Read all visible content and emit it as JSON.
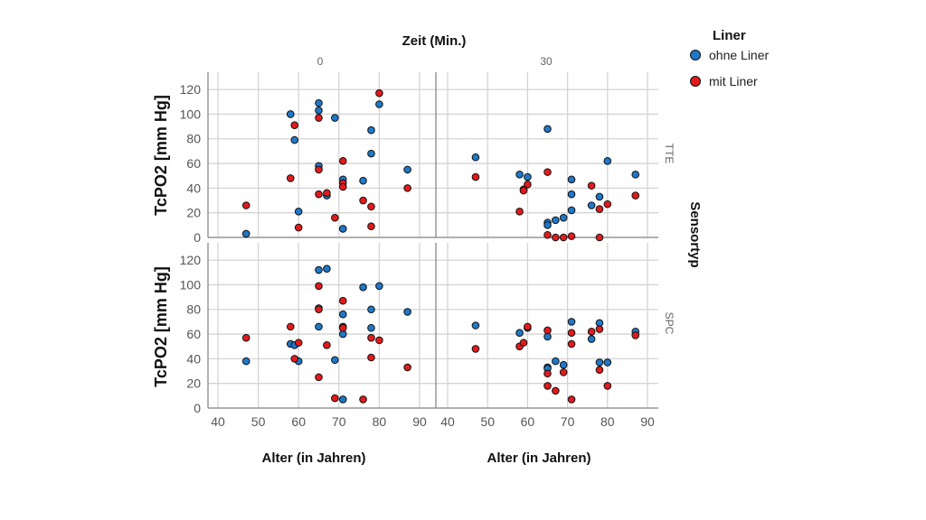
{
  "chart_data": {
    "type": "scatter",
    "title": "Zeit (Min.)",
    "xlabel": "Alter (in Jahren)",
    "ylabel": "TcPO2 [mm Hg]",
    "row_title": "Sensortyp",
    "columns": [
      "0",
      "30"
    ],
    "rows": [
      "TTE",
      "SPC"
    ],
    "xlim": [
      37,
      94
    ],
    "ylim": [
      0,
      134
    ],
    "xticks": [
      40,
      50,
      60,
      70,
      80,
      90
    ],
    "yticks": [
      0,
      20,
      40,
      60,
      80,
      100,
      120
    ],
    "grid": true,
    "legend": {
      "title": "Liner",
      "position": "top-right",
      "entries": [
        {
          "name": "ohne Liner",
          "color": "#1f78c8"
        },
        {
          "name": "mit Liner",
          "color": "#e31a1c"
        }
      ]
    },
    "panels": [
      {
        "column": "0",
        "row": "TTE",
        "ohne": [
          [
            80,
            108
          ],
          [
            65,
            109
          ],
          [
            65,
            103
          ],
          [
            58,
            100
          ],
          [
            69,
            97
          ],
          [
            78,
            87
          ],
          [
            59,
            79
          ],
          [
            78,
            68
          ],
          [
            65,
            58
          ],
          [
            87,
            55
          ],
          [
            71,
            47
          ],
          [
            76,
            46
          ],
          [
            67,
            34
          ],
          [
            60,
            21
          ],
          [
            71,
            7
          ],
          [
            47,
            3
          ]
        ],
        "mit": [
          [
            80,
            117
          ],
          [
            65,
            97
          ],
          [
            59,
            91
          ],
          [
            71,
            62
          ],
          [
            65,
            55
          ],
          [
            58,
            48
          ],
          [
            71,
            44
          ],
          [
            71,
            41
          ],
          [
            87,
            40
          ],
          [
            65,
            35
          ],
          [
            67,
            36
          ],
          [
            76,
            30
          ],
          [
            47,
            26
          ],
          [
            78,
            25
          ],
          [
            69,
            16
          ],
          [
            60,
            8
          ],
          [
            78,
            9
          ]
        ]
      },
      {
        "column": "30",
        "row": "TTE",
        "ohne": [
          [
            65,
            88
          ],
          [
            47,
            65
          ],
          [
            80,
            62
          ],
          [
            58,
            51
          ],
          [
            60,
            49
          ],
          [
            87,
            51
          ],
          [
            71,
            47
          ],
          [
            71,
            35
          ],
          [
            78,
            33
          ],
          [
            76,
            26
          ],
          [
            71,
            22
          ],
          [
            69,
            16
          ],
          [
            67,
            14
          ],
          [
            65,
            12
          ],
          [
            65,
            10
          ]
        ],
        "mit": [
          [
            47,
            49
          ],
          [
            65,
            53
          ],
          [
            60,
            43
          ],
          [
            59,
            39
          ],
          [
            59,
            38
          ],
          [
            76,
            42
          ],
          [
            87,
            34
          ],
          [
            80,
            27
          ],
          [
            78,
            23
          ],
          [
            58,
            21
          ],
          [
            65,
            2
          ],
          [
            67,
            0
          ],
          [
            69,
            0
          ],
          [
            71,
            1
          ],
          [
            78,
            0
          ]
        ]
      },
      {
        "column": "0",
        "row": "SPC",
        "ohne": [
          [
            65,
            112
          ],
          [
            67,
            113
          ],
          [
            76,
            98
          ],
          [
            80,
            99
          ],
          [
            65,
            81
          ],
          [
            78,
            80
          ],
          [
            87,
            78
          ],
          [
            71,
            76
          ],
          [
            65,
            66
          ],
          [
            78,
            65
          ],
          [
            71,
            60
          ],
          [
            58,
            52
          ],
          [
            59,
            51
          ],
          [
            60,
            38
          ],
          [
            47,
            38
          ],
          [
            69,
            39
          ],
          [
            71,
            7
          ]
        ],
        "mit": [
          [
            65,
            99
          ],
          [
            71,
            87
          ],
          [
            65,
            80
          ],
          [
            58,
            66
          ],
          [
            71,
            66
          ],
          [
            71,
            65
          ],
          [
            47,
            57
          ],
          [
            78,
            57
          ],
          [
            80,
            55
          ],
          [
            60,
            53
          ],
          [
            67,
            51
          ],
          [
            59,
            40
          ],
          [
            78,
            41
          ],
          [
            87,
            33
          ],
          [
            65,
            25
          ],
          [
            69,
            8
          ],
          [
            76,
            7
          ]
        ]
      },
      {
        "column": "30",
        "row": "SPC",
        "ohne": [
          [
            47,
            67
          ],
          [
            58,
            61
          ],
          [
            60,
            65
          ],
          [
            65,
            58
          ],
          [
            71,
            70
          ],
          [
            76,
            56
          ],
          [
            78,
            69
          ],
          [
            87,
            62
          ],
          [
            67,
            38
          ],
          [
            69,
            35
          ],
          [
            65,
            33
          ],
          [
            65,
            32
          ],
          [
            78,
            37
          ],
          [
            80,
            37
          ]
        ],
        "mit": [
          [
            47,
            48
          ],
          [
            60,
            66
          ],
          [
            58,
            50
          ],
          [
            59,
            53
          ],
          [
            65,
            63
          ],
          [
            71,
            61
          ],
          [
            71,
            52
          ],
          [
            76,
            62
          ],
          [
            78,
            64
          ],
          [
            87,
            59
          ],
          [
            65,
            28
          ],
          [
            69,
            29
          ],
          [
            78,
            31
          ],
          [
            65,
            18
          ],
          [
            80,
            18
          ],
          [
            67,
            14
          ],
          [
            71,
            7
          ]
        ]
      }
    ]
  }
}
